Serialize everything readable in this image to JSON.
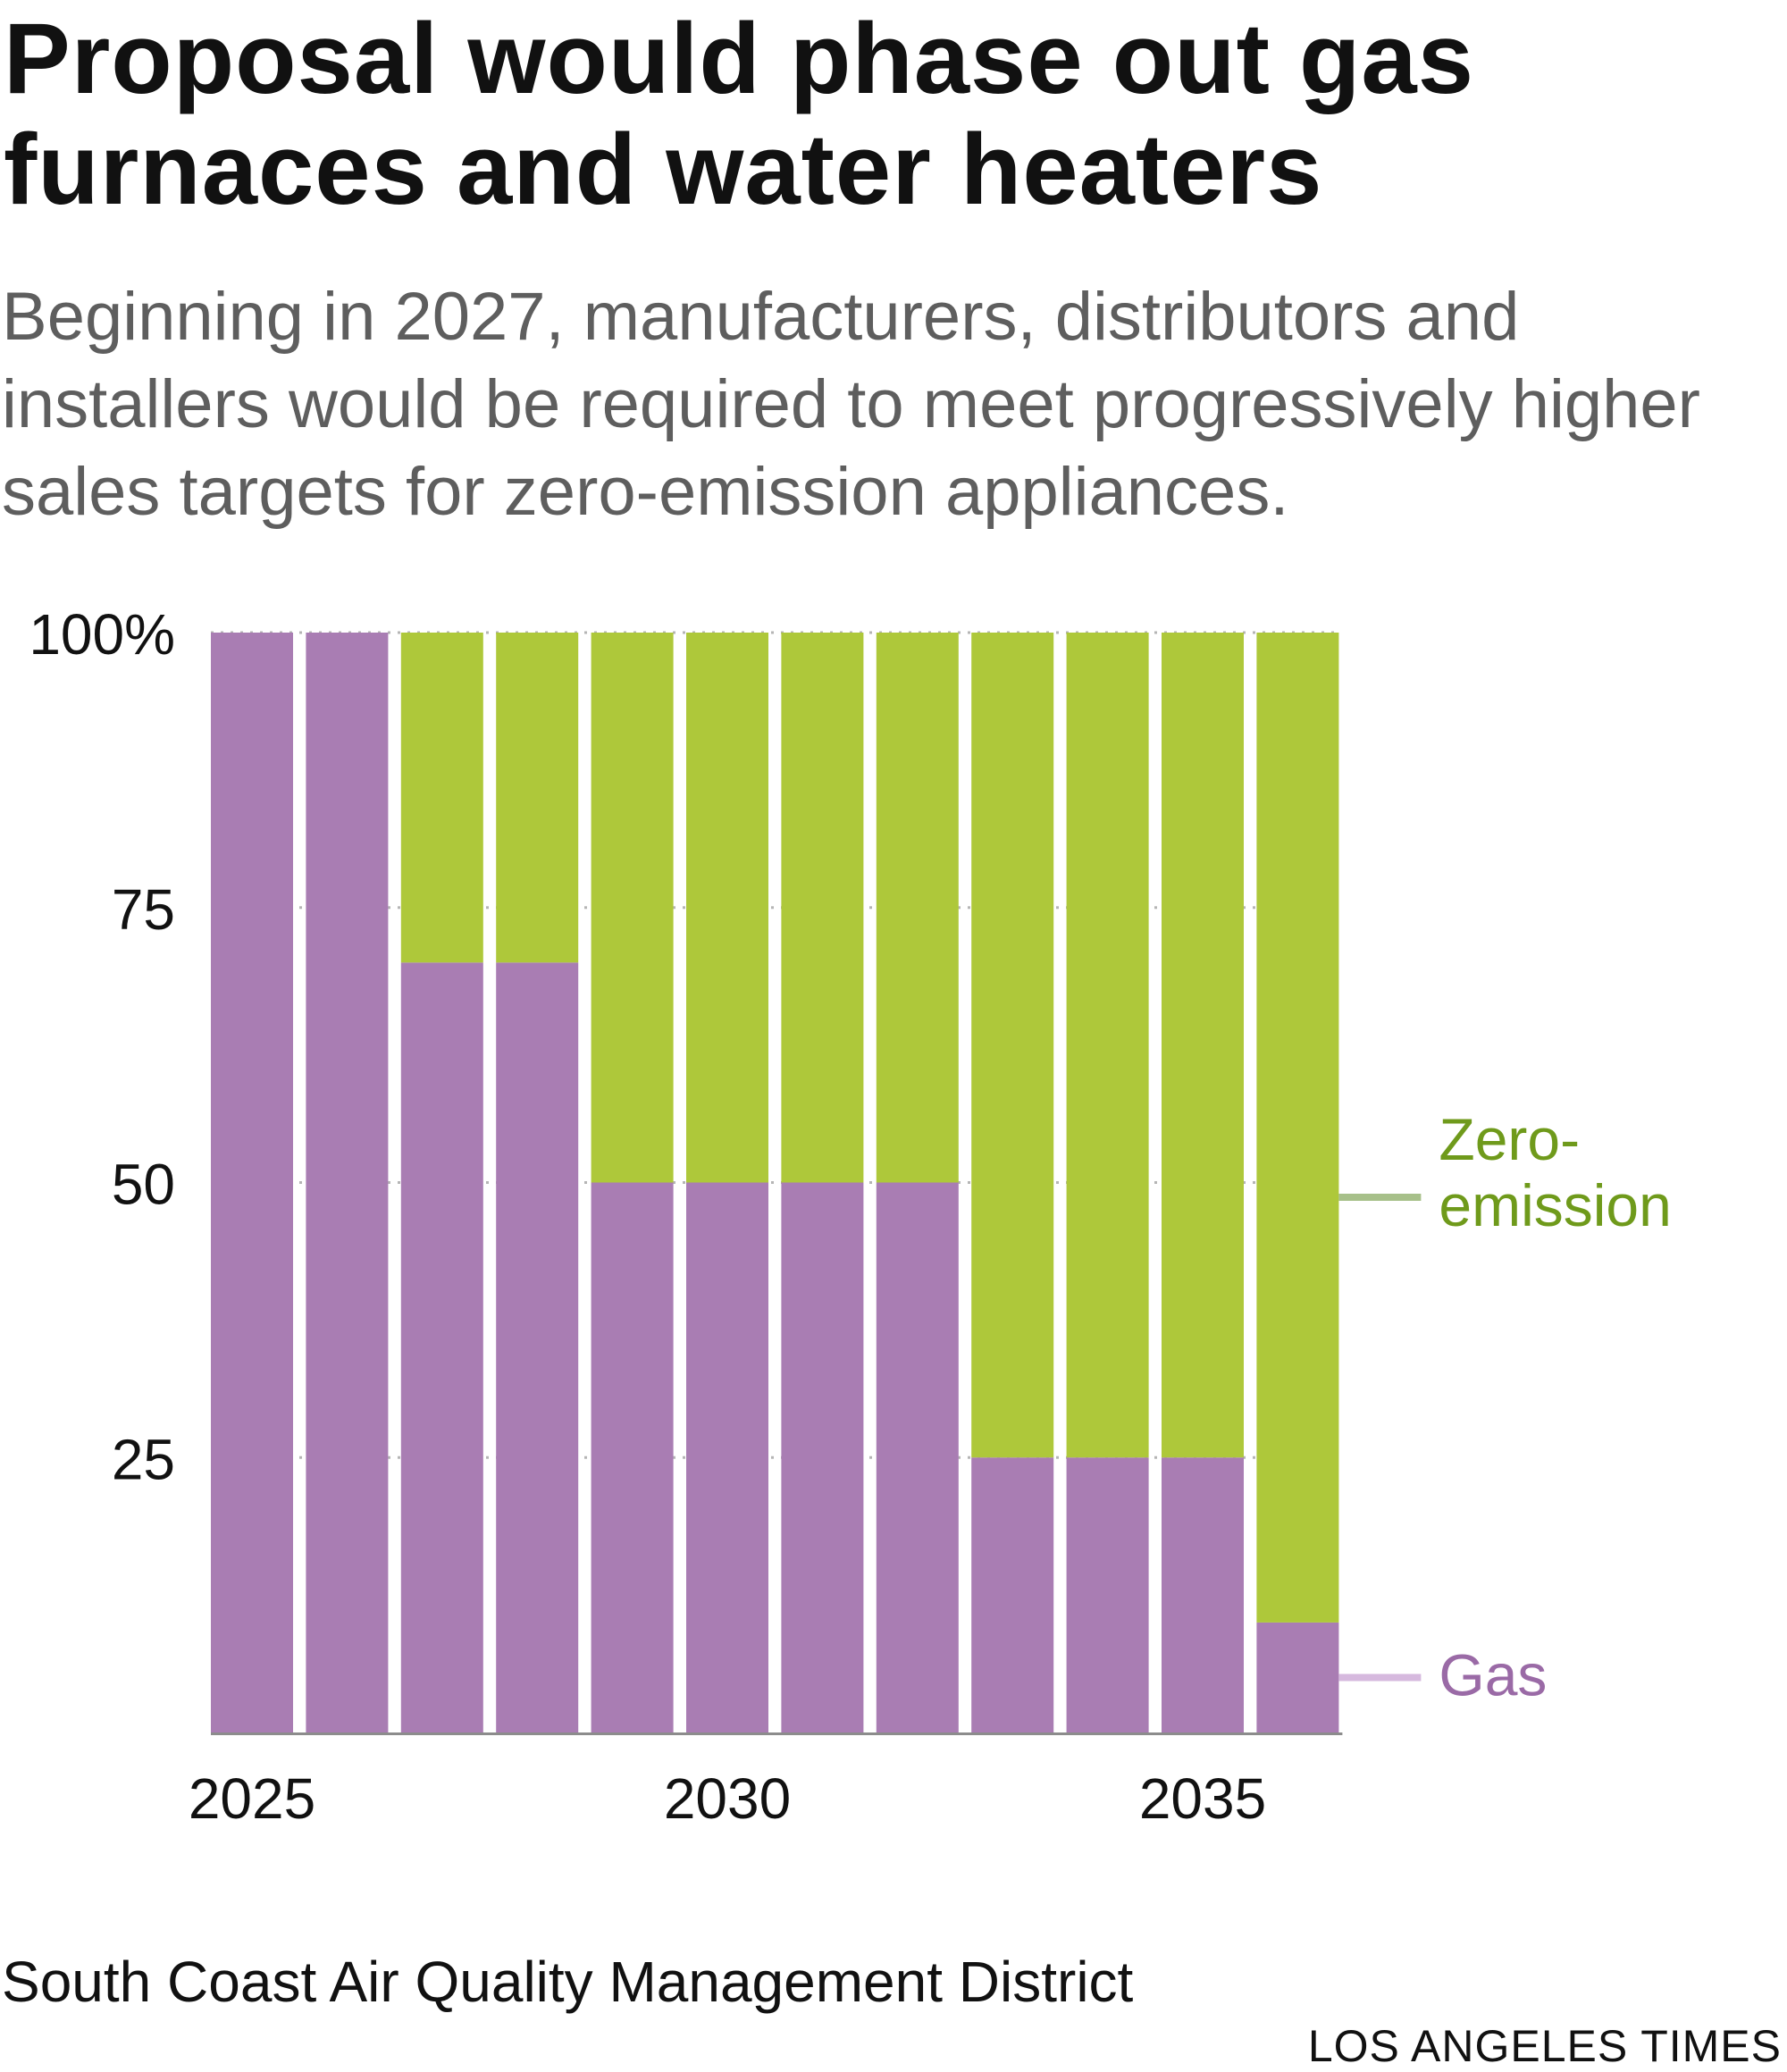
{
  "title": "Proposal would phase out gas furnaces and water heaters",
  "subtitle": "Beginning in 2027, manufacturers, distributors and installers would be required to meet progressively higher sales targets for zero-emission appliances.",
  "source": "South Coast Air Quality Management District",
  "credit": "LOS ANGELES TIMES",
  "colors": {
    "gas": "#a97db3",
    "zero_emission": "#aec83a",
    "zero_emission_label": "#6f9a1b",
    "gas_label": "#9a6aa6",
    "zero_emission_leader": "#a7c08a",
    "gas_leader": "#d6b9de",
    "gridline": "#b5b5b5",
    "axis": "#8c8c8c",
    "tick_text": "#111111"
  },
  "chart_data": {
    "type": "bar",
    "stacked": true,
    "categories": [
      "2025",
      "2026",
      "2027",
      "2028",
      "2029",
      "2030",
      "2031",
      "2032",
      "2033",
      "2034",
      "2035",
      "2036"
    ],
    "series": [
      {
        "name": "Gas",
        "values": [
          100,
          100,
          70,
          70,
          50,
          50,
          50,
          50,
          25,
          25,
          25,
          10
        ]
      },
      {
        "name": "Zero-emission",
        "values": [
          0,
          0,
          30,
          30,
          50,
          50,
          50,
          50,
          75,
          75,
          75,
          90
        ]
      }
    ],
    "y_ticks": [
      "25",
      "50",
      "75",
      "100%"
    ],
    "y_tick_values": [
      25,
      50,
      75,
      100
    ],
    "x_tick_labels": [
      "2025",
      "2030",
      "2035"
    ],
    "series_labels": [
      {
        "series": "Zero-emission",
        "lines": [
          "Zero-",
          "emission"
        ]
      },
      {
        "series": "Gas",
        "lines": [
          "Gas"
        ]
      }
    ],
    "ylim": [
      0,
      100
    ],
    "grid": true,
    "gridline_style": "dotted"
  }
}
